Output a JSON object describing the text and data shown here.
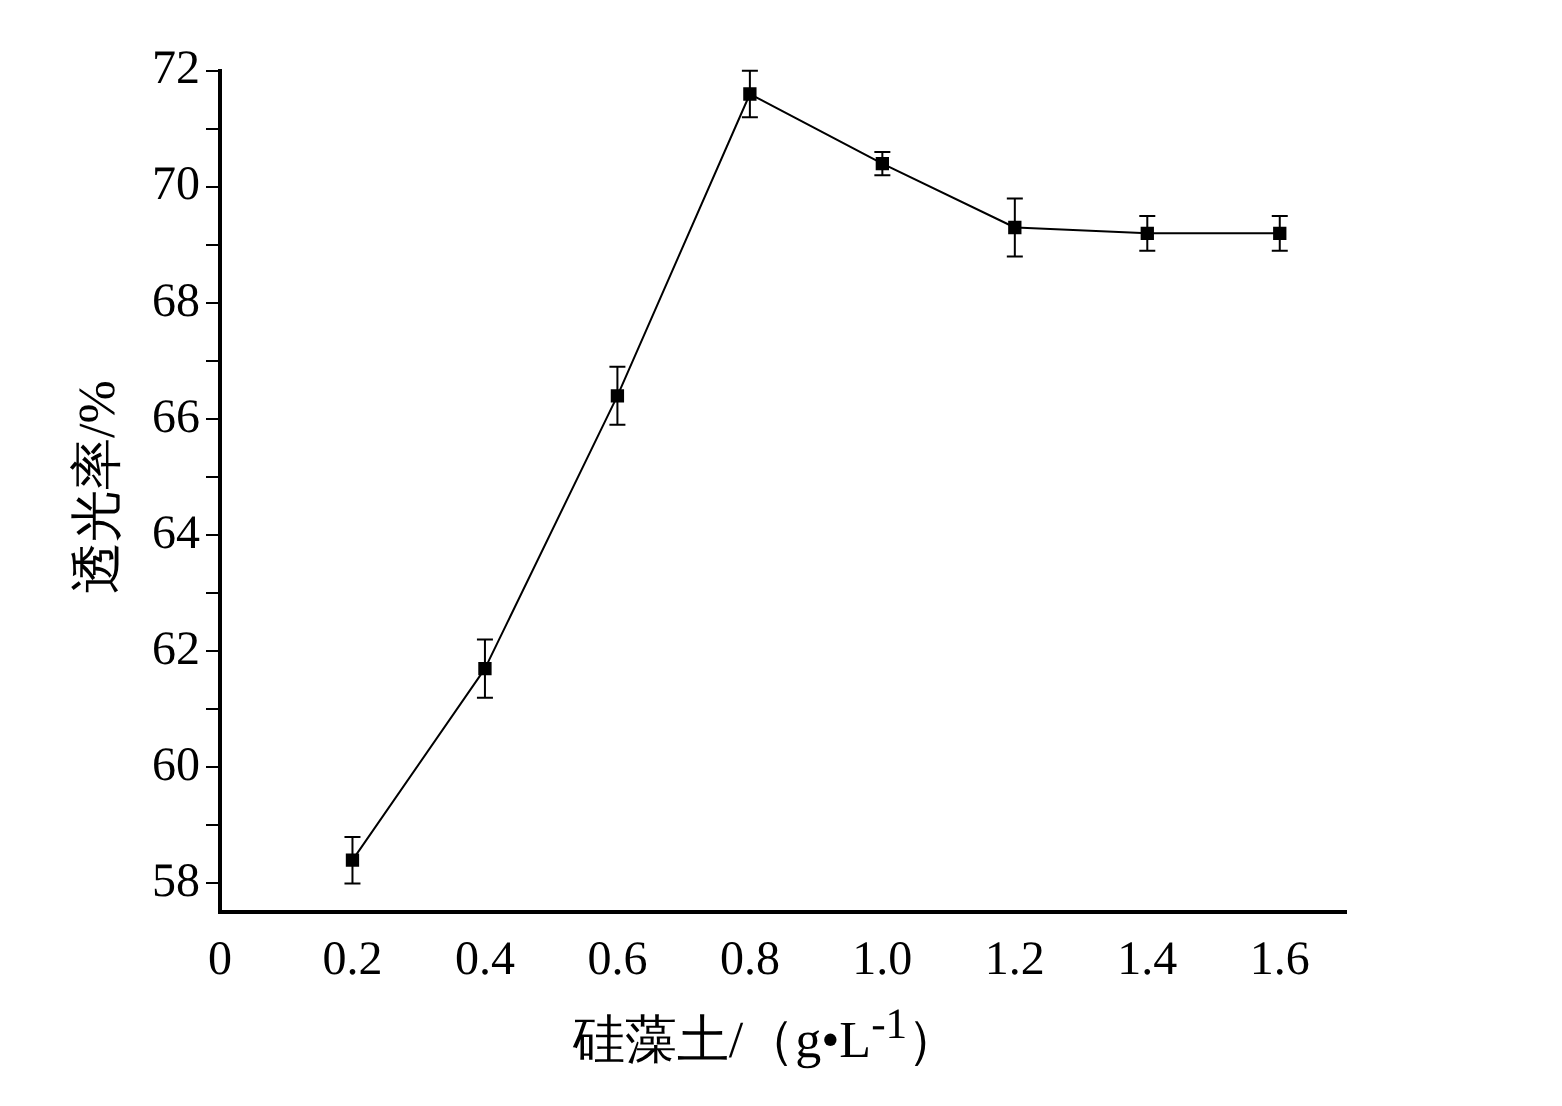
{
  "chart_data": {
    "type": "line",
    "xlabel": "硅藻土/（g•L$^{-1}$）",
    "ylabel": "透光率/%",
    "x": [
      0.2,
      0.4,
      0.6,
      0.8,
      1.0,
      1.2,
      1.4,
      1.6
    ],
    "series": [
      {
        "color": "#000000",
        "values": [
          58.4,
          61.7,
          66.4,
          71.6,
          70.4,
          69.3,
          69.2,
          69.2
        ],
        "errors": [
          0.4,
          0.5,
          0.5,
          0.4,
          0.2,
          0.5,
          0.3,
          0.3
        ]
      }
    ],
    "xlim": [
      0,
      1.7
    ],
    "xticks": [
      0,
      0.2,
      0.4,
      0.6,
      0.8,
      {
        "value": 1.0,
        "label": "1.0"
      },
      1.2,
      1.4,
      1.6
    ],
    "ylim": [
      57.5,
      72
    ],
    "yticks": [
      58,
      {
        "value": 59,
        "label": null
      },
      60,
      {
        "value": 61,
        "label": null
      },
      62,
      {
        "value": 63,
        "label": null
      },
      64,
      {
        "value": 65,
        "label": null
      },
      66,
      {
        "value": 67,
        "label": null
      },
      68,
      {
        "value": 69,
        "label": null
      },
      70,
      {
        "value": 71,
        "label": null
      },
      72
    ],
    "grid": false,
    "legend": false,
    "marker": "square",
    "line_style": "solid"
  }
}
